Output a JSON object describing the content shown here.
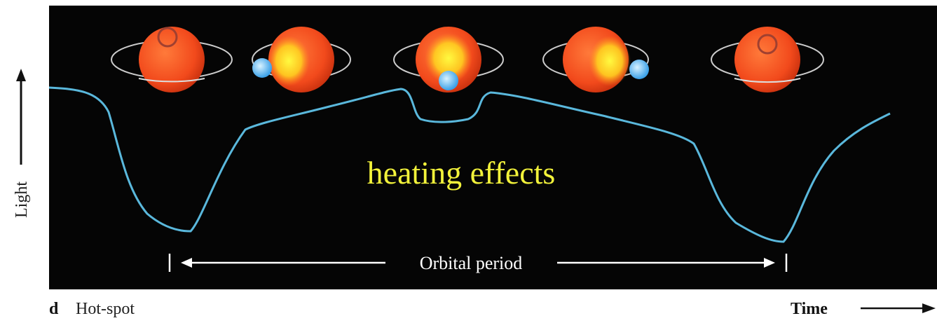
{
  "axis_labels": {
    "y": "Light",
    "x": "Time"
  },
  "annotation": "heating effects",
  "period_label": "Orbital period",
  "panel": {
    "letter": "d",
    "caption": "Hot-spot"
  }
}
